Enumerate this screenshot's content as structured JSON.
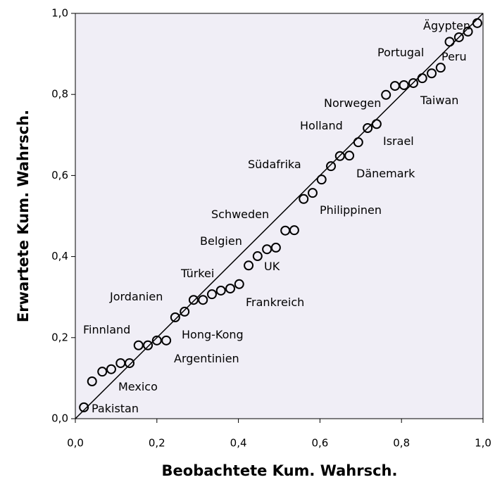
{
  "chart_data": {
    "type": "scatter",
    "xlabel": "Beobachtete Kum. Wahrsch.",
    "ylabel": "Erwartete Kum. Wahrsch.",
    "xlim": [
      0,
      1
    ],
    "ylim": [
      0,
      1
    ],
    "xticks": [
      {
        "value": 0,
        "label": "0,0"
      },
      {
        "value": 0.2,
        "label": "0,2"
      },
      {
        "value": 0.4,
        "label": "0,4"
      },
      {
        "value": 0.6,
        "label": "0,6"
      },
      {
        "value": 0.8,
        "label": "0,8"
      },
      {
        "value": 1,
        "label": "1,0"
      }
    ],
    "yticks": [
      {
        "value": 0,
        "label": "0,0"
      },
      {
        "value": 0.2,
        "label": "0,2"
      },
      {
        "value": 0.4,
        "label": "0,4"
      },
      {
        "value": 0.6,
        "label": "0,6"
      },
      {
        "value": 0.8,
        "label": "0,8"
      },
      {
        "value": 1,
        "label": "1,0"
      }
    ],
    "color": "#000000",
    "background": "#f0eef6",
    "x": [
      0.021,
      0.041,
      0.066,
      0.088,
      0.111,
      0.133,
      0.155,
      0.178,
      0.2,
      0.223,
      0.245,
      0.268,
      0.29,
      0.313,
      0.335,
      0.357,
      0.38,
      0.402,
      0.425,
      0.447,
      0.47,
      0.492,
      0.515,
      0.537,
      0.56,
      0.582,
      0.604,
      0.627,
      0.649,
      0.672,
      0.694,
      0.717,
      0.739,
      0.762,
      0.784,
      0.806,
      0.829,
      0.851,
      0.874,
      0.896,
      0.918,
      0.941,
      0.963,
      0.986
    ],
    "values": [
      0.028,
      0.092,
      0.116,
      0.122,
      0.137,
      0.137,
      0.181,
      0.181,
      0.193,
      0.193,
      0.25,
      0.264,
      0.293,
      0.293,
      0.307,
      0.316,
      0.321,
      0.332,
      0.378,
      0.401,
      0.418,
      0.422,
      0.464,
      0.465,
      0.542,
      0.557,
      0.59,
      0.623,
      0.648,
      0.649,
      0.682,
      0.717,
      0.727,
      0.799,
      0.821,
      0.823,
      0.828,
      0.84,
      0.852,
      0.866,
      0.93,
      0.941,
      0.955,
      0.976
    ],
    "annotations": [
      "Pakistan",
      "Mexico",
      "Finnland",
      "Argentinien",
      "Hong-Kong",
      "Jordanien",
      "Türkei",
      "Frankreich",
      "Belgien",
      "UK",
      "Schweden",
      "Philippinen",
      "Südafrika",
      "Dänemark",
      "Holland",
      "Israel",
      "Norwegen",
      "Taiwan",
      "Portugal",
      "Peru",
      "Ägypten"
    ]
  }
}
